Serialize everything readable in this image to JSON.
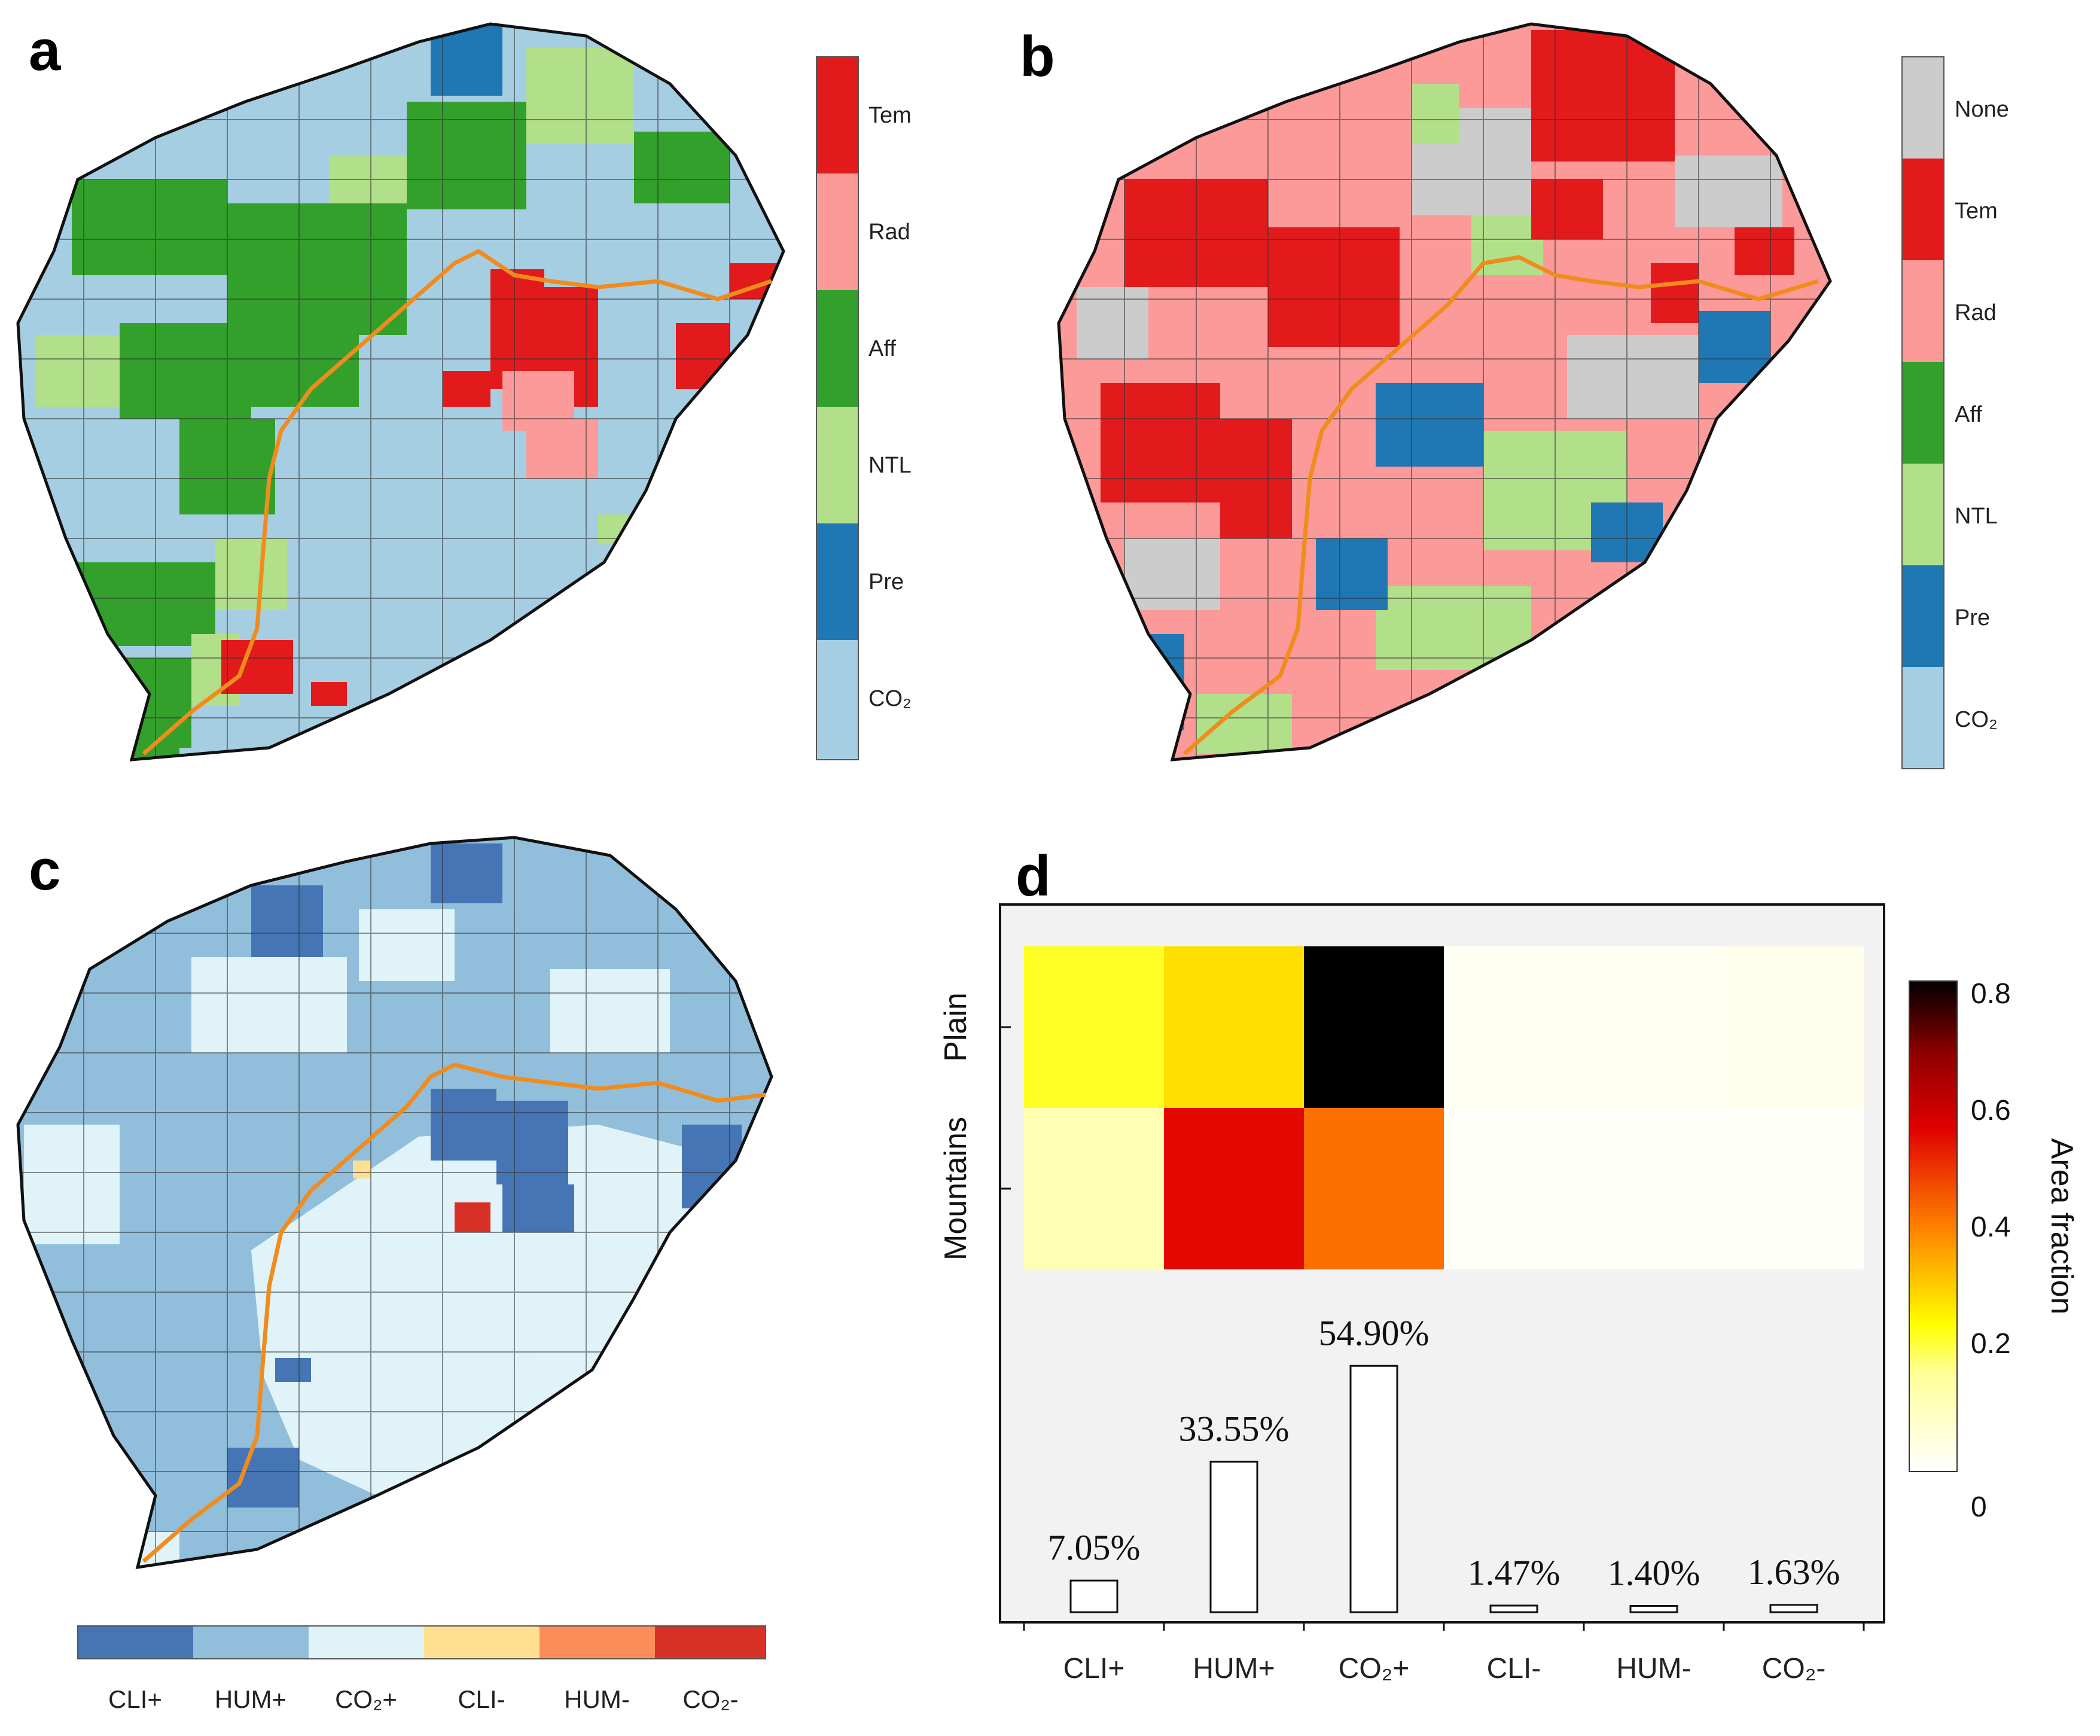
{
  "panels": {
    "a": {
      "letter": "a",
      "legend": [
        "Tem",
        "Rad",
        "Aff",
        "NTL",
        "Pre",
        "CO₂"
      ]
    },
    "b": {
      "letter": "b",
      "legend": [
        "None",
        "Tem",
        "Rad",
        "Aff",
        "NTL",
        "Pre",
        "CO₂"
      ]
    },
    "c": {
      "letter": "c",
      "legend": [
        "CLI+",
        "HUM+",
        "CO₂+",
        "CLI-",
        "HUM-",
        "CO₂-"
      ]
    },
    "d": {
      "letter": "d"
    }
  },
  "colors": {
    "Tem": "#e31a1c",
    "Rad": "#fb9a99",
    "Aff": "#33a02c",
    "NTL": "#b2df8a",
    "Pre": "#1f78b4",
    "CO2": "#a6cee3",
    "None": "#cccccc",
    "CLIp": "#4575b4",
    "HUMp": "#91bfdb",
    "CO2p": "#e0f3f8",
    "CLIm": "#fee090",
    "HUMm": "#fc8d59",
    "CO2m": "#d73027",
    "boundary": "#f08c1e"
  },
  "chart_data": {
    "type": "heatmap",
    "categories": [
      "CLI+",
      "HUM+",
      "CO₂+",
      "CLI-",
      "HUM-",
      "CO₂-"
    ],
    "rows": [
      "Plain",
      "Mountains"
    ],
    "heatmap_values": [
      [
        0.22,
        0.28,
        0.82,
        0.02,
        0.02,
        0.03
      ],
      [
        0.12,
        0.55,
        0.42,
        0.01,
        0.01,
        0.01
      ]
    ],
    "bar_values": [
      7.05,
      33.55,
      54.9,
      1.47,
      1.4,
      1.63
    ],
    "bar_labels": [
      "7.05%",
      "33.55%",
      "54.90%",
      "1.47%",
      "1.40%",
      "1.63%"
    ],
    "colorbar": {
      "label": "Area fraction",
      "ticks": [
        "0",
        "0.2",
        "0.4",
        "0.6",
        "0.8"
      ],
      "range": [
        0,
        0.8
      ]
    }
  }
}
